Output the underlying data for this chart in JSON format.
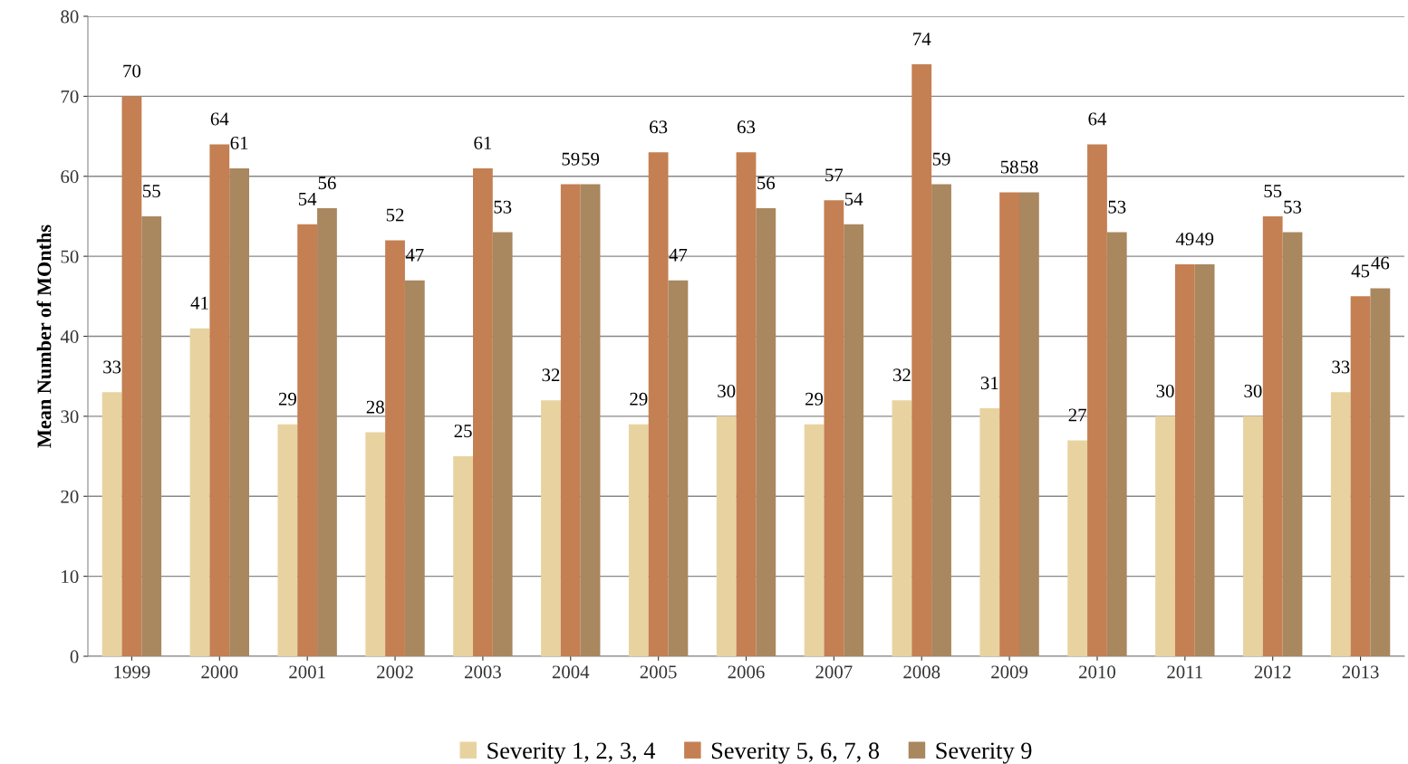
{
  "chart_data": {
    "type": "bar",
    "ylabel": "Mean Number of MOnths",
    "categories": [
      "1999",
      "2000",
      "2001",
      "2002",
      "2003",
      "2004",
      "2005",
      "2006",
      "2007",
      "2008",
      "2009",
      "2010",
      "2011",
      "2012",
      "2013"
    ],
    "series": [
      {
        "name": "Severity 1, 2, 3, 4",
        "color": "#e8d3a0",
        "values": [
          33,
          41,
          29,
          28,
          25,
          32,
          29,
          30,
          29,
          32,
          31,
          27,
          30,
          30,
          33
        ]
      },
      {
        "name": "Severity 5, 6, 7, 8",
        "color": "#c47f52",
        "values": [
          70,
          64,
          54,
          52,
          61,
          59,
          63,
          63,
          57,
          74,
          58,
          64,
          49,
          55,
          45
        ]
      },
      {
        "name": "Severity 9",
        "color": "#a9875f",
        "values": [
          55,
          61,
          56,
          47,
          53,
          59,
          47,
          56,
          54,
          59,
          58,
          53,
          49,
          53,
          46
        ]
      }
    ],
    "ylim": [
      0,
      80
    ],
    "yticks": [
      0,
      10,
      20,
      30,
      40,
      50,
      60,
      70,
      80
    ],
    "grid": "y",
    "legend": "bottom",
    "data_labels": true
  }
}
